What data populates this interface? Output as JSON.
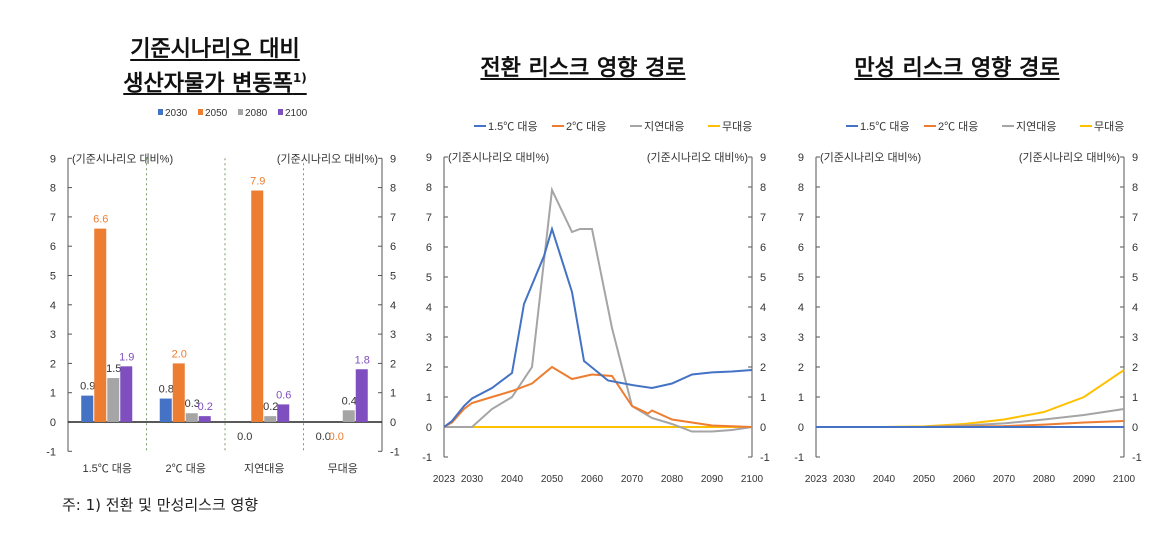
{
  "titles": {
    "left_line1": "기준시나리오 대비",
    "left_line2": "생산자물가 변동폭",
    "left_sup": "1)",
    "middle": "전환 리스크 영향 경로",
    "right": "만성 리스크 영향 경로"
  },
  "footnote": "주: 1) 전환 및 만성리스크 영향",
  "colors": {
    "blue": "#4472C4",
    "orange": "#ED7D31",
    "gray": "#A5A5A5",
    "yellow": "#FFC000",
    "purple": "#7F4FBF"
  },
  "chart_data": [
    {
      "type": "bar",
      "title": "기준시나리오 대비 생산자물가 변동폭",
      "ylabel_left": "(기준시나리오 대비%)",
      "ylabel_right": "(기준시나리오 대비%)",
      "ylim": [
        -1,
        9
      ],
      "yticks": [
        "-1",
        "0",
        "1",
        "2",
        "3",
        "4",
        "5",
        "6",
        "7",
        "8",
        "9"
      ],
      "categories": [
        "1.5℃ 대응",
        "2℃ 대응",
        "지연대응",
        "무대응"
      ],
      "series": [
        {
          "name": "2030",
          "color": "#4472C4",
          "values": [
            0.9,
            0.8,
            0.0,
            0.0
          ],
          "labels": [
            "0.9",
            "0.8",
            "0.0",
            "0.0"
          ]
        },
        {
          "name": "2050",
          "color": "#ED7D31",
          "values": [
            6.6,
            2.0,
            7.9,
            0.0
          ],
          "labels": [
            "6.6",
            "2.0",
            "7.9",
            "0.0"
          ]
        },
        {
          "name": "2080",
          "color": "#A5A5A5",
          "values": [
            1.5,
            0.3,
            0.2,
            0.4
          ],
          "labels": [
            "1.5",
            "0.3",
            "0.2",
            "0.4"
          ]
        },
        {
          "name": "2100",
          "color": "#7F4FBF",
          "values": [
            1.9,
            0.2,
            0.6,
            1.8
          ],
          "labels": [
            "1.9",
            "0.2",
            "0.6",
            "1.8"
          ]
        }
      ],
      "legend": "top"
    },
    {
      "type": "line",
      "title": "전환 리스크 영향 경로",
      "ylabel_left": "(기준시나리오 대비%)",
      "ylabel_right": "(기준시나리오 대비%)",
      "ylim": [
        -1,
        9
      ],
      "xlim": [
        2023,
        2100
      ],
      "xticks": [
        "2023",
        "2030",
        "2040",
        "2050",
        "2060",
        "2070",
        "2080",
        "2090",
        "2100"
      ],
      "yticks": [
        "-1",
        "0",
        "1",
        "2",
        "3",
        "4",
        "5",
        "6",
        "7",
        "8",
        "9"
      ],
      "series": [
        {
          "name": "1.5℃ 대응",
          "color": "#4472C4",
          "points": [
            [
              2023,
              0
            ],
            [
              2025,
              0.2
            ],
            [
              2028,
              0.7
            ],
            [
              2030,
              0.95
            ],
            [
              2035,
              1.3
            ],
            [
              2040,
              1.8
            ],
            [
              2043,
              4.1
            ],
            [
              2048,
              5.7
            ],
            [
              2050,
              6.6
            ],
            [
              2055,
              4.5
            ],
            [
              2058,
              2.2
            ],
            [
              2064,
              1.55
            ],
            [
              2070,
              1.4
            ],
            [
              2075,
              1.3
            ],
            [
              2080,
              1.45
            ],
            [
              2085,
              1.75
            ],
            [
              2090,
              1.82
            ],
            [
              2095,
              1.85
            ],
            [
              2100,
              1.9
            ]
          ]
        },
        {
          "name": "2℃ 대응",
          "color": "#ED7D31",
          "points": [
            [
              2023,
              0
            ],
            [
              2025,
              0.15
            ],
            [
              2028,
              0.6
            ],
            [
              2030,
              0.8
            ],
            [
              2035,
              1.0
            ],
            [
              2040,
              1.2
            ],
            [
              2045,
              1.45
            ],
            [
              2050,
              2.0
            ],
            [
              2055,
              1.6
            ],
            [
              2060,
              1.75
            ],
            [
              2065,
              1.7
            ],
            [
              2070,
              0.7
            ],
            [
              2074,
              0.45
            ],
            [
              2075,
              0.55
            ],
            [
              2080,
              0.25
            ],
            [
              2085,
              0.15
            ],
            [
              2090,
              0.05
            ],
            [
              2100,
              0
            ]
          ]
        },
        {
          "name": "지연대응",
          "color": "#A5A5A5",
          "points": [
            [
              2023,
              0
            ],
            [
              2030,
              0
            ],
            [
              2035,
              0.6
            ],
            [
              2040,
              1.0
            ],
            [
              2045,
              2.0
            ],
            [
              2050,
              7.9
            ],
            [
              2055,
              6.5
            ],
            [
              2057,
              6.6
            ],
            [
              2060,
              6.6
            ],
            [
              2065,
              3.3
            ],
            [
              2070,
              0.7
            ],
            [
              2075,
              0.3
            ],
            [
              2080,
              0.1
            ],
            [
              2085,
              -0.15
            ],
            [
              2090,
              -0.15
            ],
            [
              2095,
              -0.1
            ],
            [
              2100,
              0
            ]
          ]
        },
        {
          "name": "무대응",
          "color": "#FFC000",
          "points": [
            [
              2023,
              0
            ],
            [
              2100,
              0
            ]
          ]
        }
      ],
      "legend": "top"
    },
    {
      "type": "line",
      "title": "만성 리스크 영향 경로",
      "ylabel_left": "(기준시나리오 대비%)",
      "ylabel_right": "(기준시나리오 대비%)",
      "ylim": [
        -1,
        9
      ],
      "xlim": [
        2023,
        2100
      ],
      "xticks": [
        "2023",
        "2030",
        "2040",
        "2050",
        "2060",
        "2070",
        "2080",
        "2090",
        "2100"
      ],
      "yticks": [
        "-1",
        "0",
        "1",
        "2",
        "3",
        "4",
        "5",
        "6",
        "7",
        "8",
        "9"
      ],
      "series": [
        {
          "name": "1.5℃ 대응",
          "color": "#4472C4",
          "points": [
            [
              2023,
              0
            ],
            [
              2100,
              0
            ]
          ]
        },
        {
          "name": "2℃ 대응",
          "color": "#ED7D31",
          "points": [
            [
              2023,
              0
            ],
            [
              2050,
              0
            ],
            [
              2070,
              0.03
            ],
            [
              2080,
              0.08
            ],
            [
              2090,
              0.15
            ],
            [
              2100,
              0.2
            ]
          ]
        },
        {
          "name": "지연대응",
          "color": "#A5A5A5",
          "points": [
            [
              2023,
              0
            ],
            [
              2050,
              0
            ],
            [
              2060,
              0.05
            ],
            [
              2070,
              0.12
            ],
            [
              2080,
              0.25
            ],
            [
              2090,
              0.4
            ],
            [
              2100,
              0.6
            ]
          ]
        },
        {
          "name": "무대응",
          "color": "#FFC000",
          "points": [
            [
              2023,
              0
            ],
            [
              2040,
              0
            ],
            [
              2050,
              0.02
            ],
            [
              2060,
              0.1
            ],
            [
              2070,
              0.25
            ],
            [
              2080,
              0.5
            ],
            [
              2090,
              1.0
            ],
            [
              2100,
              1.9
            ]
          ]
        }
      ],
      "legend": "top"
    }
  ]
}
